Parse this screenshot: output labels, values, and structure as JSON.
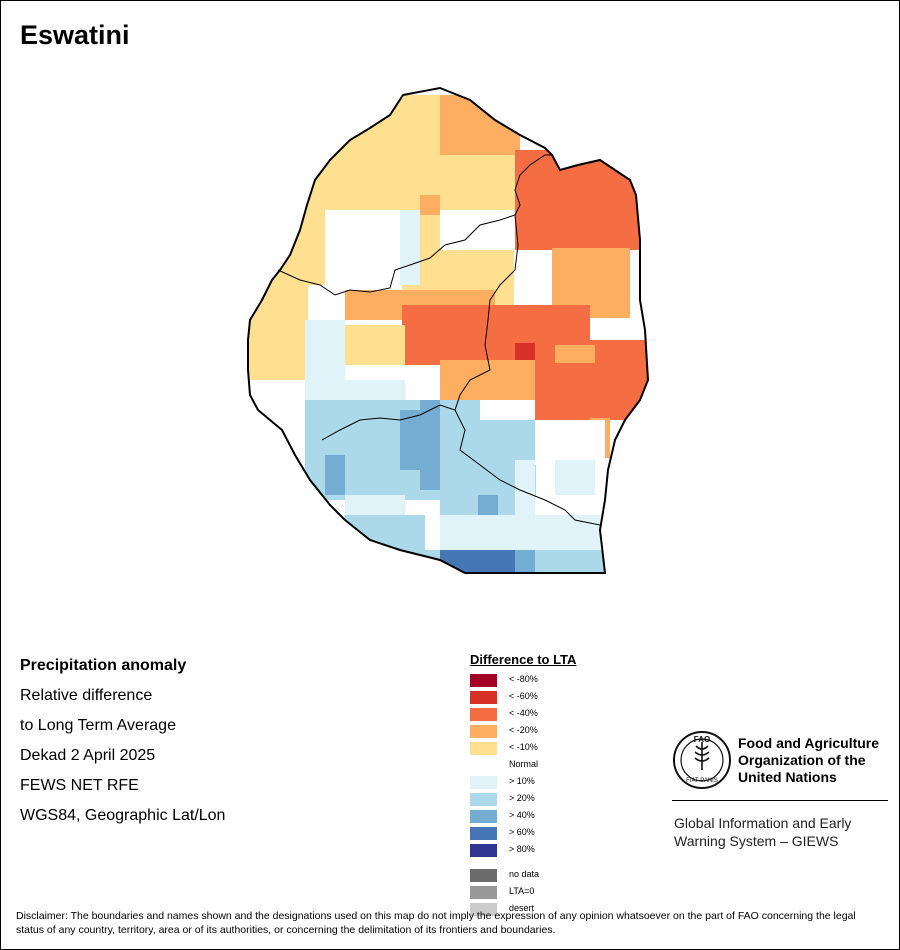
{
  "title": "Eswatini",
  "info_lines": [
    "Precipitation anomaly",
    "Relative difference",
    "to Long Term Average",
    "Dekad 2 April 2025",
    "FEWS NET RFE",
    "WGS84, Geographic Lat/Lon"
  ],
  "legend": {
    "title": "Difference to LTA",
    "items": [
      {
        "label": "< -80%",
        "color": "#a50026"
      },
      {
        "label": "< -60%",
        "color": "#d73027"
      },
      {
        "label": "< -40%",
        "color": "#f46d43"
      },
      {
        "label": "< -20%",
        "color": "#fdae61"
      },
      {
        "label": "< -10%",
        "color": "#fee090"
      },
      {
        "label": "Normal",
        "color": "#ffffff"
      },
      {
        "label": "> 10%",
        "color": "#e0f3f8"
      },
      {
        "label": "> 20%",
        "color": "#abd9e9"
      },
      {
        "label": "> 40%",
        "color": "#74add1"
      },
      {
        "label": "> 60%",
        "color": "#4575b4"
      },
      {
        "label": "> 80%",
        "color": "#313695"
      },
      {
        "label": "no data",
        "color": "#6b6b6b"
      },
      {
        "label": "LTA=0",
        "color": "#999999"
      },
      {
        "label": "desert",
        "color": "#cccccc"
      }
    ]
  },
  "fao": {
    "name_lines": [
      "Food and Agriculture",
      "Organization of the",
      "United Nations"
    ],
    "logo_text": "FAO",
    "seal_text": "FIAT PANIS",
    "giews_lines": [
      "Global Information and Early",
      "Warning System – GIEWS"
    ]
  },
  "disclaimer": "Disclaimer: The boundaries and names shown and the designations used on this map do not imply the expression of any opinion whatsoever on the part of FAO concerning the legal status of any country, territory, area or of its authorities, or concerning the delimitation of its frontiers and boundaries.",
  "map_colors": {
    "m10": "#fee090",
    "m20": "#fdae61",
    "m40": "#f46d43",
    "m60": "#d73027",
    "p10": "#e0f3f8",
    "p20": "#abd9e9",
    "p40": "#74add1",
    "p60": "#4575b4",
    "p80": "#313695"
  }
}
